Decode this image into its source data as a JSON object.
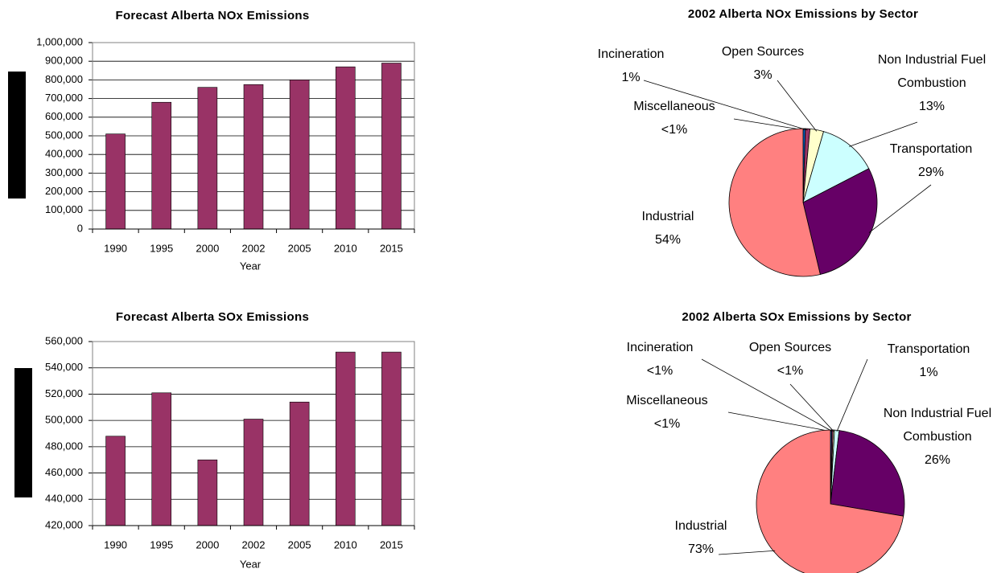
{
  "chart_data": [
    {
      "type": "bar",
      "title": "Forecast Alberta NOx Emissions",
      "x_label": "Year",
      "categories": [
        "1990",
        "1995",
        "2000",
        "2002",
        "2005",
        "2010",
        "2015"
      ],
      "values": [
        510000,
        680000,
        760000,
        775000,
        800000,
        870000,
        890000
      ],
      "color": "#993366",
      "ylim": [
        0,
        1000000
      ],
      "yticks": [
        0,
        {
          "value": 100000,
          "label": "100,000"
        },
        {
          "value": 200000,
          "label": "200,000"
        },
        {
          "value": 300000,
          "label": "300,000"
        },
        {
          "value": 400000,
          "label": "400,000"
        },
        {
          "value": 500000,
          "label": "500,000"
        },
        {
          "value": 600000,
          "label": "600,000"
        },
        {
          "value": 700000,
          "label": "700,000"
        },
        {
          "value": 800000,
          "label": "800,000"
        },
        {
          "value": 900000,
          "label": "900,000"
        },
        {
          "value": 1000000,
          "label": "1,000,000"
        }
      ],
      "grid": true
    },
    {
      "type": "bar",
      "title": "Forecast Alberta SOx Emissions",
      "x_label": "Year",
      "categories": [
        "1990",
        "1995",
        "2000",
        "2002",
        "2005",
        "2010",
        "2015"
      ],
      "values": [
        488000,
        521000,
        470000,
        501000,
        514000,
        552000,
        552000
      ],
      "color": "#993366",
      "ylim": [
        420000,
        560000
      ],
      "yticks": [
        {
          "value": 420000,
          "label": "420,000"
        },
        {
          "value": 440000,
          "label": "440,000"
        },
        {
          "value": 460000,
          "label": "460,000"
        },
        {
          "value": 480000,
          "label": "480,000"
        },
        {
          "value": 500000,
          "label": "500,000"
        },
        {
          "value": 520000,
          "label": "520,000"
        },
        {
          "value": 540000,
          "label": "540,000"
        },
        {
          "value": 560000,
          "label": "560,000"
        }
      ],
      "grid": true
    },
    {
      "type": "pie",
      "title": "2002 Alberta NOx Emissions by Sector",
      "categories": [
        "Miscellaneous",
        "Incineration",
        "Open Sources",
        "Non Industrial Fuel Combustion",
        "Transportation",
        "Industrial"
      ],
      "values": [
        0.5,
        1,
        3,
        13,
        29,
        54
      ],
      "value_labels": [
        "<1%",
        "1%",
        "3%",
        "13%",
        "29%",
        "54%"
      ],
      "colors": [
        "#0066cc",
        "#993366",
        "#ffffcc",
        "#ccffff",
        "#660066",
        "#ff8080"
      ]
    },
    {
      "type": "pie",
      "title": "2002 Alberta SOx Emissions by Sector",
      "categories": [
        "Miscellaneous",
        "Incineration",
        "Open Sources",
        "Transportation",
        "Non Industrial Fuel Combustion",
        "Industrial"
      ],
      "values": [
        0.3,
        0.3,
        0.3,
        1,
        26,
        73
      ],
      "value_labels": [
        "<1%",
        "<1%",
        "<1%",
        "1%",
        "26%",
        "73%"
      ],
      "colors": [
        "#0066cc",
        "#993366",
        "#ffffcc",
        "#ccffff",
        "#660066",
        "#ff8080"
      ]
    }
  ]
}
